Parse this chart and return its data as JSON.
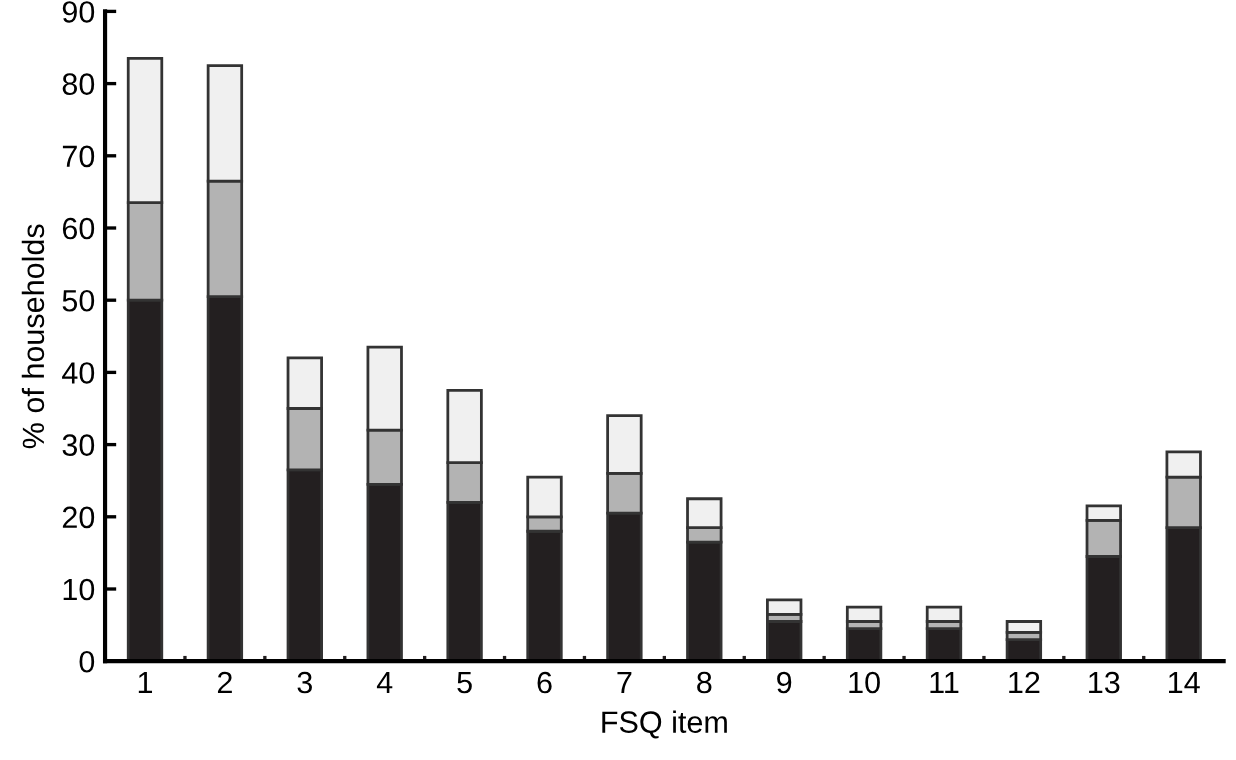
{
  "chart_data": {
    "type": "bar",
    "stacked": true,
    "xlabel": "FSQ item",
    "ylabel": "% of households",
    "categories": [
      "1",
      "2",
      "3",
      "4",
      "5",
      "6",
      "7",
      "8",
      "9",
      "10",
      "11",
      "12",
      "13",
      "14"
    ],
    "series": [
      {
        "color": "#231f20",
        "values": [
          50,
          50.5,
          26.5,
          24.5,
          22,
          18,
          20.5,
          16.5,
          5.5,
          4.5,
          4.5,
          3,
          14.5,
          18.5
        ]
      },
      {
        "color": "#b3b3b3",
        "values": [
          13.5,
          16,
          8.5,
          7.5,
          5.5,
          2,
          5.5,
          2,
          1,
          1,
          1,
          1,
          5,
          7
        ]
      },
      {
        "color": "#f0f0f0",
        "values": [
          20,
          16,
          7,
          11.5,
          10,
          5.5,
          8,
          4,
          2,
          2,
          2,
          1.5,
          2,
          3.5
        ]
      }
    ],
    "ylim": [
      0,
      90
    ],
    "yticks": [
      0,
      10,
      20,
      30,
      40,
      50,
      60,
      70,
      80,
      90
    ],
    "grid": false
  }
}
